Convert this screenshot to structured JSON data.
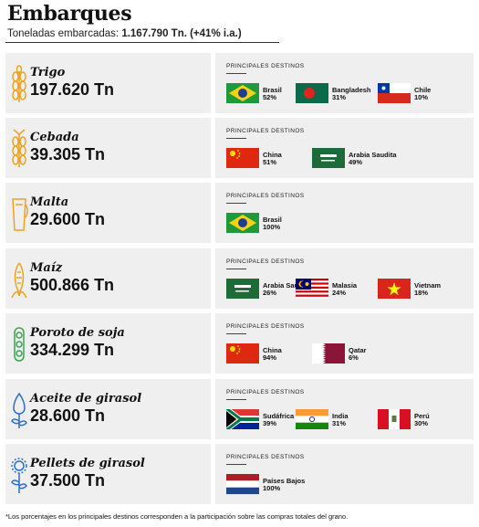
{
  "header": {
    "title": "Embarques",
    "subtitle_prefix": "Toneladas embarcadas: ",
    "subtitle_value": "1.167.790 Tn. (+41% i.a.)"
  },
  "destinations_label": "PRINCIPALES DESTINOS",
  "colors": {
    "accent_orange": "#f0a21f",
    "accent_green": "#3aa64a",
    "accent_blue": "#2b6fc9",
    "card_bg": "#efefef"
  },
  "grains": [
    {
      "name": "Trigo",
      "tons": "197.620 Tn",
      "icon": "wheat-icon",
      "destinations": [
        {
          "country": "Brasil",
          "pct": "52%",
          "flag": "flag-brazil"
        },
        {
          "country": "Bangladesh",
          "pct": "31%",
          "flag": "flag-bangladesh"
        },
        {
          "country": "Chile",
          "pct": "10%",
          "flag": "flag-chile"
        }
      ]
    },
    {
      "name": "Cebada",
      "tons": "39.305 Tn",
      "icon": "barley-icon",
      "destinations": [
        {
          "country": "China",
          "pct": "51%",
          "flag": "flag-china"
        },
        {
          "country": "Arabia Saudita",
          "pct": "49%",
          "flag": "flag-saudi-arabia"
        }
      ]
    },
    {
      "name": "Malta",
      "tons": "29.600 Tn",
      "icon": "malt-glass-icon",
      "destinations": [
        {
          "country": "Brasil",
          "pct": "100%",
          "flag": "flag-brazil"
        }
      ]
    },
    {
      "name": "Maíz",
      "tons": "500.866 Tn",
      "icon": "corn-icon",
      "destinations": [
        {
          "country": "Arabia Saudita",
          "pct": "26%",
          "flag": "flag-saudi-arabia"
        },
        {
          "country": "Malasia",
          "pct": "24%",
          "flag": "flag-malaysia"
        },
        {
          "country": "Vietnam",
          "pct": "18%",
          "flag": "flag-vietnam"
        }
      ]
    },
    {
      "name": "Poroto de soja",
      "tons": "334.299 Tn",
      "icon": "soybean-icon",
      "destinations": [
        {
          "country": "China",
          "pct": "94%",
          "flag": "flag-china"
        },
        {
          "country": "Qatar",
          "pct": "6%",
          "flag": "flag-qatar"
        }
      ]
    },
    {
      "name": "Aceite de girasol",
      "tons": "28.600 Tn",
      "icon": "sunflower-oil-icon",
      "destinations": [
        {
          "country": "Sudáfrica",
          "pct": "39%",
          "flag": "flag-south-africa"
        },
        {
          "country": "India",
          "pct": "31%",
          "flag": "flag-india"
        },
        {
          "country": "Perú",
          "pct": "30%",
          "flag": "flag-peru"
        }
      ]
    },
    {
      "name": "Pellets de girasol",
      "tons": "37.500 Tn",
      "icon": "sunflower-pellets-icon",
      "destinations": [
        {
          "country": "Países Bajos",
          "pct": "100%",
          "flag": "flag-netherlands"
        }
      ]
    }
  ],
  "footnote": "*Los porcentajes en los principales destinos corresponden a la participación sobre las compras totales del grano."
}
